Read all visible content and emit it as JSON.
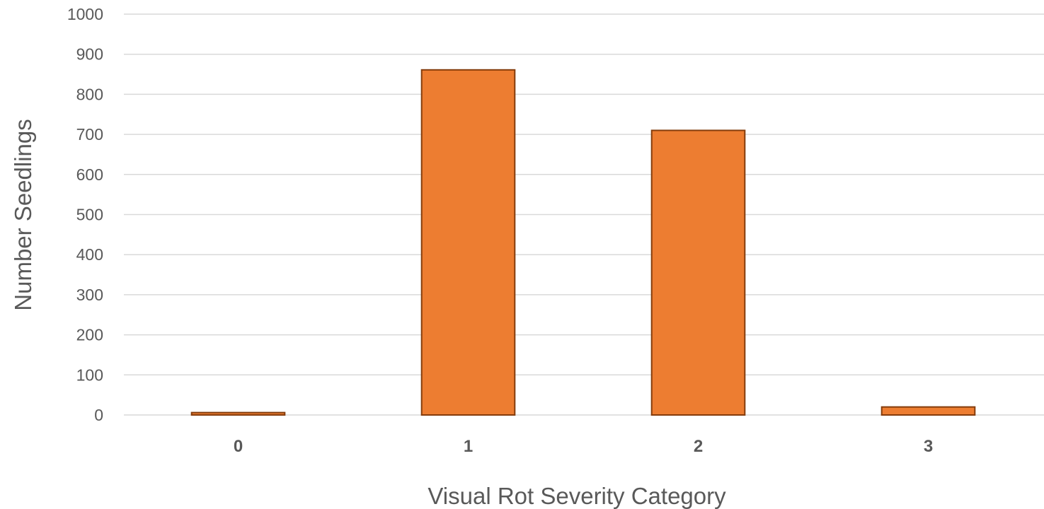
{
  "chart_data": {
    "type": "bar",
    "title": "",
    "xlabel": "Visual Rot Severity Category",
    "ylabel": "Number Seedlings",
    "categories": [
      "0",
      "1",
      "2",
      "3"
    ],
    "series": [
      {
        "values": [
          6,
          861,
          710,
          20
        ]
      }
    ],
    "ylim": [
      0,
      1000
    ],
    "yticks": [
      0,
      100,
      200,
      300,
      400,
      500,
      600,
      700,
      800,
      900,
      1000
    ],
    "grid": true,
    "legend": "none",
    "colors": {
      "bar_fill": "#ED7D31",
      "bar_stroke": "#843C0C",
      "grid": "#D9D9D9",
      "text": "#595959"
    }
  }
}
